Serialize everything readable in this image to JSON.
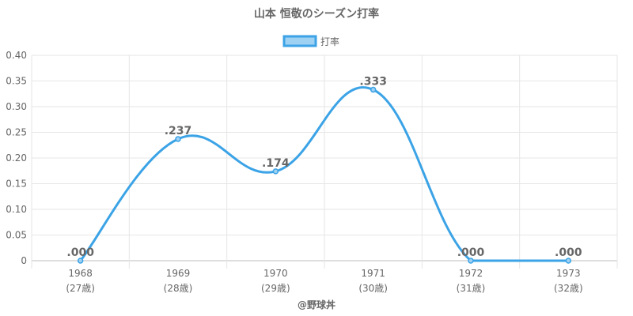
{
  "chart_data": {
    "type": "line",
    "title": "山本 恒敬のシーズン打率",
    "categories": [
      "1968",
      "1969",
      "1970",
      "1971",
      "1972",
      "1973"
    ],
    "category_sublabels": [
      "(27歳)",
      "(28歳)",
      "(29歳)",
      "(30歳)",
      "(31歳)",
      "(32歳)"
    ],
    "series": [
      {
        "name": "打率",
        "values": [
          0.0,
          0.237,
          0.174,
          0.333,
          0.0,
          0.0
        ],
        "data_labels": [
          ".000",
          ".237",
          ".174",
          ".333",
          ".000",
          ".000"
        ],
        "color": "#3ba3e6",
        "fill": "#9fd1f3"
      }
    ],
    "ylim": [
      0,
      0.4
    ],
    "y_ticks": [
      0,
      0.05,
      0.1,
      0.15,
      0.2,
      0.25,
      0.3,
      0.35,
      0.4
    ],
    "y_tick_labels": [
      "0",
      "0.05",
      "0.10",
      "0.15",
      "0.20",
      "0.25",
      "0.30",
      "0.35",
      "0.40"
    ],
    "grid": true,
    "legend_position": "top-center",
    "credit": "@野球丼",
    "gridColor": "#e6e6e6"
  }
}
